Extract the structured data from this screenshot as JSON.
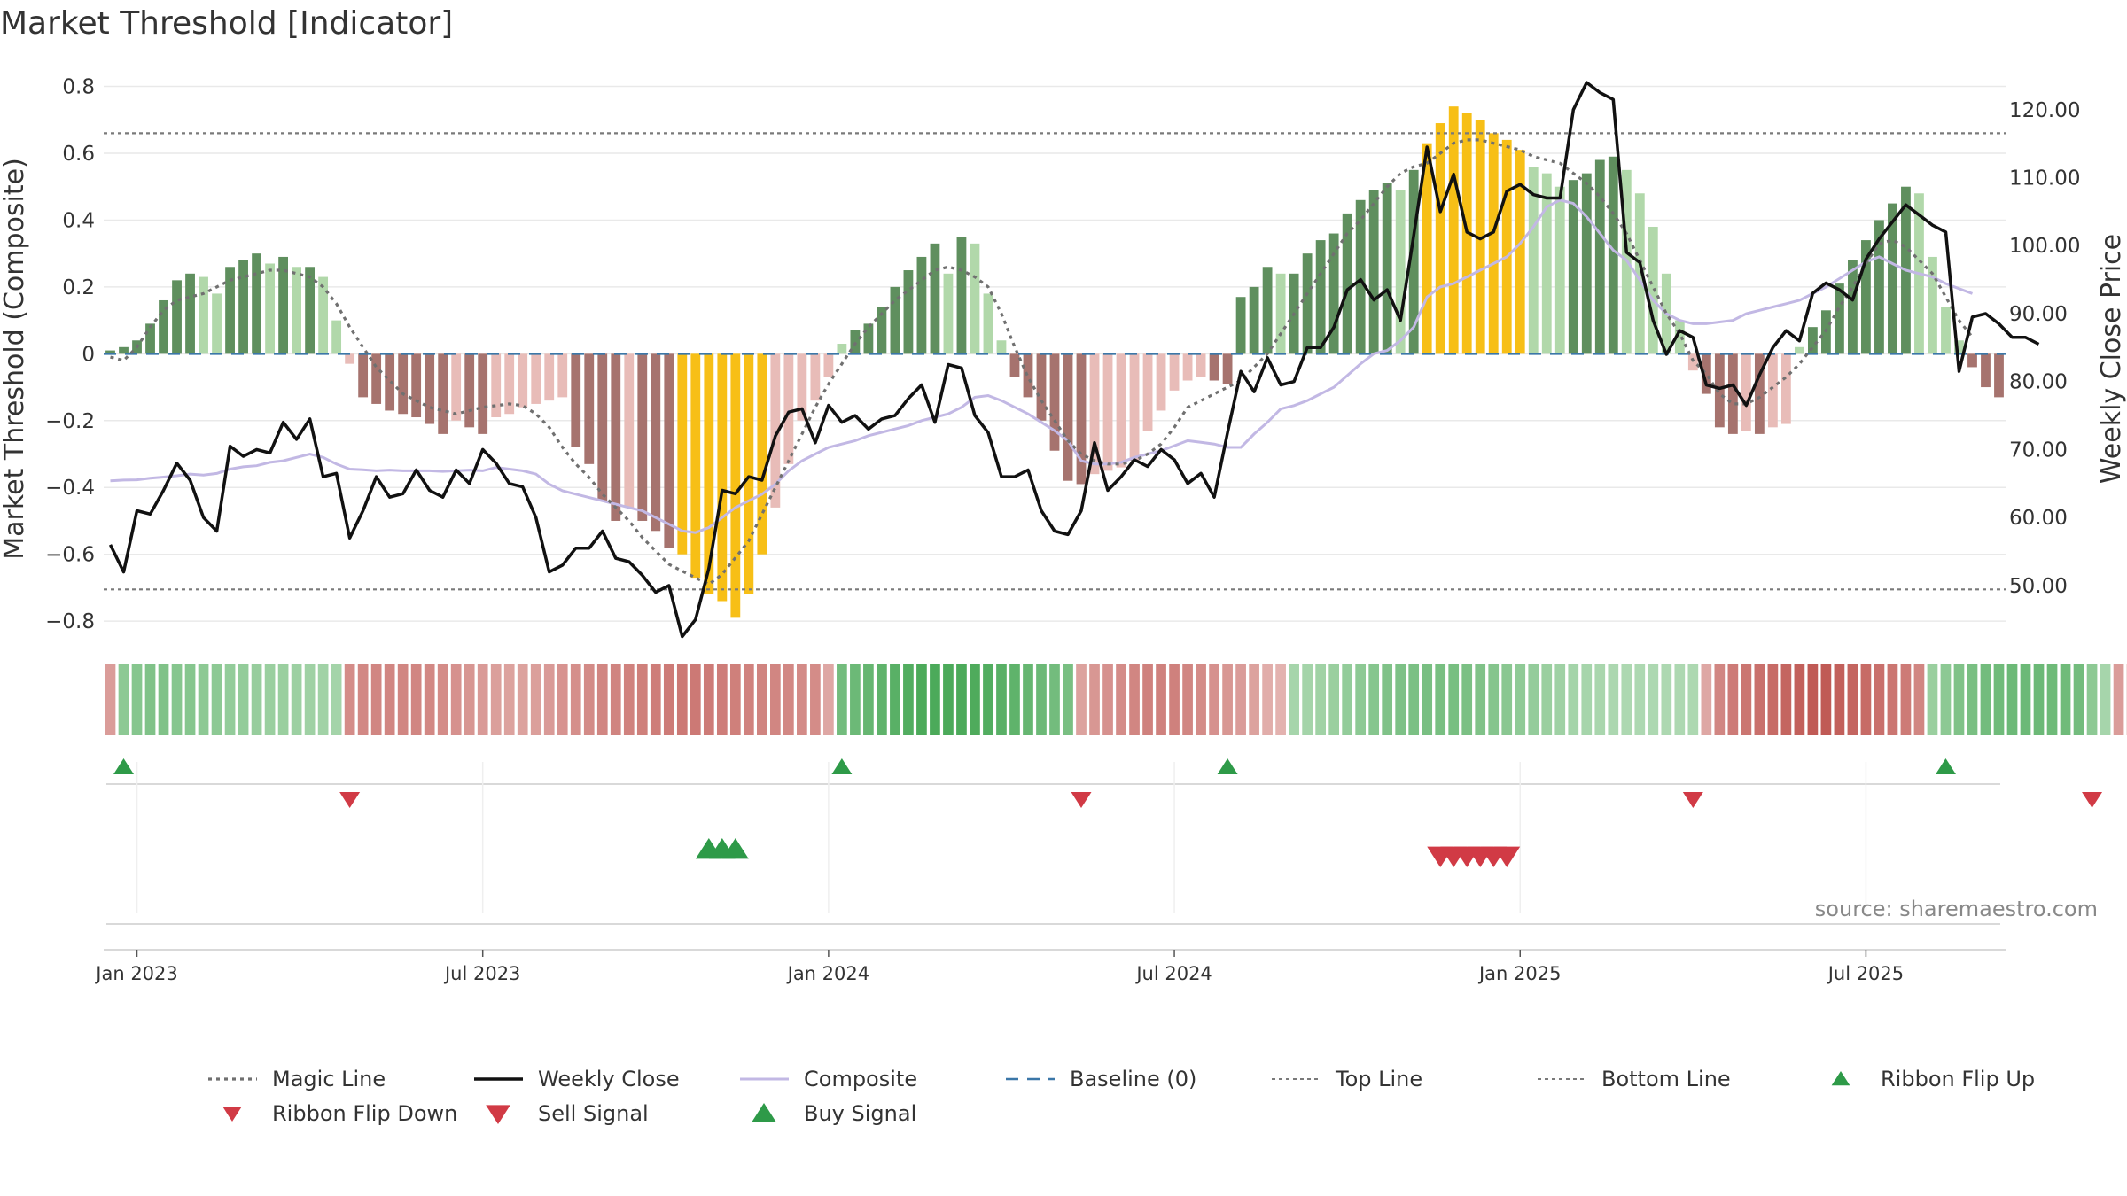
{
  "title": "Market Threshold [Indicator]",
  "source": "source: sharemaestro.com",
  "colors": {
    "pos_dark": "#5f8f5e",
    "pos_light": "#b1d8aa",
    "neg_dark": "#a6736e",
    "neg_light": "#e8bcb8",
    "extreme": "#f7bf16",
    "close": "#111111",
    "composite": "#c2b8e4",
    "magic": "#707070",
    "baseline": "#3b77a8",
    "thresholds": "#7a7a7a",
    "buy": "#2e9a48",
    "sell": "#d13a45",
    "flip_up": "#2e9a48",
    "flip_down": "#d13a45"
  },
  "chart_data": {
    "type": "bar+line",
    "title": "Market Threshold [Indicator]",
    "ylabel_left": "Market Threshold (Composite)",
    "ylabel_right": "Weekly Close Price",
    "ylim_left": [
      -0.85,
      0.82
    ],
    "ylim_right": [
      42.3,
      124.4
    ],
    "yticks_left": [
      {
        "value": 0.8,
        "label": "0.8"
      },
      {
        "value": 0.6,
        "label": "0.6"
      },
      {
        "value": 0.4,
        "label": "0.4"
      },
      {
        "value": 0.2,
        "label": "0.2"
      },
      {
        "value": 0,
        "label": "0"
      },
      {
        "value": -0.2,
        "label": "−0.2"
      },
      {
        "value": -0.4,
        "label": "−0.4"
      },
      {
        "value": -0.6,
        "label": "−0.6"
      },
      {
        "value": -0.8,
        "label": "−0.8"
      }
    ],
    "yticks_right": [
      {
        "value": 120,
        "label": "120.00"
      },
      {
        "value": 110,
        "label": "110.00"
      },
      {
        "value": 100,
        "label": "100.00"
      },
      {
        "value": 90,
        "label": "90.00"
      },
      {
        "value": 80,
        "label": "80.00"
      },
      {
        "value": 70,
        "label": "70.00"
      },
      {
        "value": 60,
        "label": "60.00"
      },
      {
        "value": 50,
        "label": "50.00"
      }
    ],
    "date_ticks": [
      {
        "week": 2,
        "label": "Jan 2023"
      },
      {
        "week": 28,
        "label": "Jul 2023"
      },
      {
        "week": 54,
        "label": "Jan 2024"
      },
      {
        "week": 80,
        "label": "Jul 2024"
      },
      {
        "week": 106,
        "label": "Jan 2025"
      },
      {
        "week": 132,
        "label": "Jul 2025"
      }
    ],
    "top_line": 0.66,
    "bottom_line": -0.705,
    "baseline": 0,
    "bar_extreme_threshold": 0.6,
    "bars": [
      0.01,
      0.02,
      0.04,
      0.09,
      0.16,
      0.22,
      0.24,
      0.23,
      0.18,
      0.26,
      0.28,
      0.3,
      0.27,
      0.29,
      0.26,
      0.26,
      0.23,
      0.1,
      -0.03,
      -0.13,
      -0.15,
      -0.17,
      -0.18,
      -0.19,
      -0.21,
      -0.24,
      -0.2,
      -0.22,
      -0.24,
      -0.19,
      -0.18,
      -0.16,
      -0.15,
      -0.14,
      -0.13,
      -0.28,
      -0.33,
      -0.44,
      -0.5,
      -0.46,
      -0.5,
      -0.53,
      -0.58,
      -0.6,
      -0.67,
      -0.72,
      -0.74,
      -0.79,
      -0.72,
      -0.6,
      -0.46,
      -0.33,
      -0.2,
      -0.14,
      -0.07,
      0.03,
      0.07,
      0.09,
      0.14,
      0.2,
      0.25,
      0.29,
      0.33,
      0.24,
      0.35,
      0.33,
      0.18,
      0.04,
      -0.07,
      -0.13,
      -0.2,
      -0.29,
      -0.38,
      -0.39,
      -0.36,
      -0.35,
      -0.34,
      -0.32,
      -0.23,
      -0.17,
      -0.11,
      -0.08,
      -0.07,
      -0.08,
      -0.09,
      0.17,
      0.2,
      0.26,
      0.24,
      0.24,
      0.3,
      0.34,
      0.36,
      0.42,
      0.46,
      0.49,
      0.51,
      0.49,
      0.55,
      0.63,
      0.69,
      0.74,
      0.72,
      0.7,
      0.66,
      0.64,
      0.61,
      0.56,
      0.54,
      0.5,
      0.52,
      0.54,
      0.58,
      0.59,
      0.55,
      0.48,
      0.38,
      0.24,
      0.1,
      -0.05,
      -0.12,
      -0.22,
      -0.24,
      -0.23,
      -0.24,
      -0.22,
      -0.21,
      0.02,
      0.08,
      0.13,
      0.21,
      0.28,
      0.34,
      0.4,
      0.45,
      0.5,
      0.48,
      0.29,
      0.14,
      0.04,
      -0.04,
      -0.1,
      -0.13
    ],
    "close": [
      56,
      52,
      61,
      60.5,
      64,
      68,
      65.5,
      60,
      58,
      70.5,
      69,
      70,
      69.5,
      74,
      71.5,
      74.5,
      66,
      66.5,
      57,
      61,
      66,
      63,
      63.5,
      67,
      64,
      63,
      67,
      65,
      70,
      68,
      65,
      64.5,
      60,
      52,
      53,
      55.5,
      55.5,
      58,
      54,
      53.5,
      51.5,
      49,
      50,
      42.5,
      45,
      52.5,
      64,
      63.5,
      66,
      65.5,
      72,
      75.5,
      76,
      71,
      76.5,
      74,
      75,
      73,
      74.5,
      75,
      77.5,
      79.5,
      74,
      82.5,
      82,
      75,
      72.5,
      66,
      66,
      67,
      61,
      58,
      57.5,
      61,
      71,
      64,
      66,
      68.5,
      67.5,
      70,
      68.5,
      65,
      66.5,
      63,
      72.5,
      81.5,
      78.5,
      83.5,
      79.5,
      80,
      85,
      85,
      88,
      93.5,
      95,
      92,
      93.5,
      89,
      101.5,
      114.5,
      105,
      110.5,
      102,
      101,
      102,
      108,
      109,
      107.5,
      107,
      107,
      120,
      124,
      122.5,
      121.5,
      99,
      97.5,
      89,
      84,
      87.5,
      86.5,
      79.5,
      79,
      79.5,
      76.5,
      81,
      85,
      87.5,
      86,
      93,
      94.5,
      93.5,
      92,
      98,
      101,
      103.5,
      106,
      104.5,
      103,
      102,
      81.5,
      89.5,
      90,
      88.5,
      86.5,
      86.5,
      85.5
    ],
    "composite": [
      -0.38,
      -0.378,
      -0.377,
      -0.372,
      -0.369,
      -0.365,
      -0.36,
      -0.363,
      -0.358,
      -0.345,
      -0.338,
      -0.335,
      -0.325,
      -0.32,
      -0.31,
      -0.3,
      -0.31,
      -0.33,
      -0.345,
      -0.347,
      -0.35,
      -0.348,
      -0.35,
      -0.35,
      -0.35,
      -0.352,
      -0.35,
      -0.348,
      -0.35,
      -0.34,
      -0.345,
      -0.35,
      -0.36,
      -0.39,
      -0.41,
      -0.42,
      -0.43,
      -0.44,
      -0.45,
      -0.46,
      -0.47,
      -0.49,
      -0.51,
      -0.53,
      -0.535,
      -0.52,
      -0.49,
      -0.46,
      -0.44,
      -0.42,
      -0.39,
      -0.35,
      -0.32,
      -0.3,
      -0.28,
      -0.27,
      -0.26,
      -0.245,
      -0.235,
      -0.225,
      -0.215,
      -0.2,
      -0.19,
      -0.18,
      -0.16,
      -0.13,
      -0.125,
      -0.14,
      -0.16,
      -0.18,
      -0.205,
      -0.23,
      -0.26,
      -0.32,
      -0.33,
      -0.33,
      -0.325,
      -0.31,
      -0.3,
      -0.29,
      -0.275,
      -0.26,
      -0.265,
      -0.27,
      -0.28,
      -0.28,
      -0.24,
      -0.205,
      -0.165,
      -0.155,
      -0.14,
      -0.12,
      -0.1,
      -0.065,
      -0.03,
      0,
      0.01,
      0.04,
      0.08,
      0.17,
      0.2,
      0.21,
      0.23,
      0.25,
      0.27,
      0.29,
      0.33,
      0.38,
      0.44,
      0.46,
      0.45,
      0.41,
      0.36,
      0.31,
      0.28,
      0.22,
      0.16,
      0.12,
      0.1,
      0.09,
      0.09,
      0.095,
      0.1,
      0.12,
      0.13,
      0.14,
      0.15,
      0.16,
      0.18,
      0.2,
      0.225,
      0.25,
      0.275,
      0.29,
      0.27,
      0.25,
      0.24,
      0.23,
      0.21,
      0.195,
      0.18
    ],
    "magic": [
      -0.01,
      -0.02,
      0.02,
      0.08,
      0.13,
      0.16,
      0.17,
      0.18,
      0.2,
      0.22,
      0.23,
      0.24,
      0.25,
      0.25,
      0.24,
      0.23,
      0.2,
      0.15,
      0.08,
      0.02,
      -0.04,
      -0.08,
      -0.12,
      -0.14,
      -0.16,
      -0.17,
      -0.18,
      -0.17,
      -0.16,
      -0.155,
      -0.15,
      -0.155,
      -0.18,
      -0.22,
      -0.28,
      -0.33,
      -0.37,
      -0.42,
      -0.46,
      -0.5,
      -0.55,
      -0.59,
      -0.63,
      -0.65,
      -0.67,
      -0.69,
      -0.66,
      -0.61,
      -0.56,
      -0.48,
      -0.4,
      -0.32,
      -0.24,
      -0.16,
      -0.09,
      -0.03,
      0.03,
      0.08,
      0.12,
      0.16,
      0.19,
      0.22,
      0.25,
      0.26,
      0.25,
      0.23,
      0.2,
      0.12,
      0.02,
      -0.07,
      -0.14,
      -0.2,
      -0.26,
      -0.3,
      -0.32,
      -0.33,
      -0.33,
      -0.32,
      -0.3,
      -0.27,
      -0.22,
      -0.16,
      -0.14,
      -0.12,
      -0.1,
      -0.08,
      -0.04,
      0,
      0.06,
      0.12,
      0.18,
      0.24,
      0.3,
      0.36,
      0.4,
      0.45,
      0.5,
      0.54,
      0.56,
      0.57,
      0.6,
      0.63,
      0.64,
      0.64,
      0.63,
      0.62,
      0.61,
      0.59,
      0.58,
      0.57,
      0.54,
      0.51,
      0.47,
      0.42,
      0.36,
      0.28,
      0.2,
      0.12,
      0.06,
      -0.02,
      -0.06,
      -0.12,
      -0.15,
      -0.15,
      -0.13,
      -0.1,
      -0.07,
      -0.03,
      0.02,
      0.07,
      0.14,
      0.2,
      0.27,
      0.33,
      0.34,
      0.32,
      0.28,
      0.24,
      0.17,
      0.1,
      0.05
    ],
    "ribbon_strength": [
      -0.4,
      0.5,
      0.55,
      0.6,
      0.6,
      0.55,
      0.55,
      0.5,
      0.5,
      0.45,
      0.45,
      0.42,
      0.4,
      0.4,
      0.38,
      0.36,
      0.34,
      0.32,
      -0.55,
      -0.58,
      -0.6,
      -0.6,
      -0.6,
      -0.6,
      -0.58,
      -0.55,
      -0.5,
      -0.46,
      -0.42,
      -0.38,
      -0.35,
      -0.35,
      -0.38,
      -0.42,
      -0.48,
      -0.52,
      -0.56,
      -0.6,
      -0.62,
      -0.64,
      -0.66,
      -0.68,
      -0.7,
      -0.72,
      -0.72,
      -0.7,
      -0.68,
      -0.66,
      -0.64,
      -0.62,
      -0.6,
      -0.58,
      -0.56,
      -0.55,
      -0.3,
      0.7,
      0.75,
      0.8,
      0.85,
      0.9,
      0.95,
      1,
      1,
      1,
      1,
      0.98,
      0.95,
      0.9,
      0.85,
      0.8,
      0.75,
      0.7,
      0.65,
      -0.35,
      -0.45,
      -0.5,
      -0.55,
      -0.6,
      -0.65,
      -0.65,
      -0.65,
      -0.6,
      -0.55,
      -0.5,
      -0.45,
      -0.4,
      -0.35,
      -0.25,
      -0.2,
      0.3,
      0.32,
      0.35,
      0.4,
      0.45,
      0.5,
      0.55,
      0.6,
      0.62,
      0.64,
      0.65,
      0.66,
      0.66,
      0.64,
      0.6,
      0.56,
      0.52,
      0.48,
      0.44,
      0.4,
      0.36,
      0.32,
      0.3,
      0.28,
      0.26,
      0.25,
      0.25,
      0.25,
      0.25,
      0.25,
      0.25,
      -0.3,
      -0.6,
      -0.7,
      -0.75,
      -0.8,
      -0.85,
      -0.9,
      -0.95,
      -1,
      -1,
      -0.95,
      -0.9,
      -0.85,
      -0.8,
      -0.75,
      -0.7,
      -0.6,
      0.4,
      0.5,
      0.6,
      0.65,
      0.7,
      0.72,
      0.75,
      0.75,
      0.75,
      0.74,
      0.72,
      0.7,
      0.5,
      0.3,
      -0.4,
      -0.5,
      -0.55
    ],
    "ribbon_flip_up": [
      1,
      55,
      84,
      138
    ],
    "ribbon_flip_down": [
      18,
      73,
      119,
      149
    ],
    "buy_signals": [
      45,
      46,
      47
    ],
    "sell_signals": [
      100,
      101,
      102,
      103,
      104,
      105
    ],
    "legend": [
      {
        "label": "Magic Line",
        "style": "dotted"
      },
      {
        "label": "Weekly Close",
        "style": "solid"
      },
      {
        "label": "Composite",
        "style": "composite"
      },
      {
        "label": "Baseline (0)",
        "style": "dashed"
      },
      {
        "label": "Top Line",
        "style": "thin-dotted"
      },
      {
        "label": "Bottom Line",
        "style": "thin-dotted"
      },
      {
        "label": "Ribbon Flip Up",
        "style": "tri-up-small"
      },
      {
        "label": "Ribbon Flip Down",
        "style": "tri-down-small"
      },
      {
        "label": "Sell Signal",
        "style": "tri-down"
      },
      {
        "label": "Buy Signal",
        "style": "tri-up"
      }
    ]
  }
}
